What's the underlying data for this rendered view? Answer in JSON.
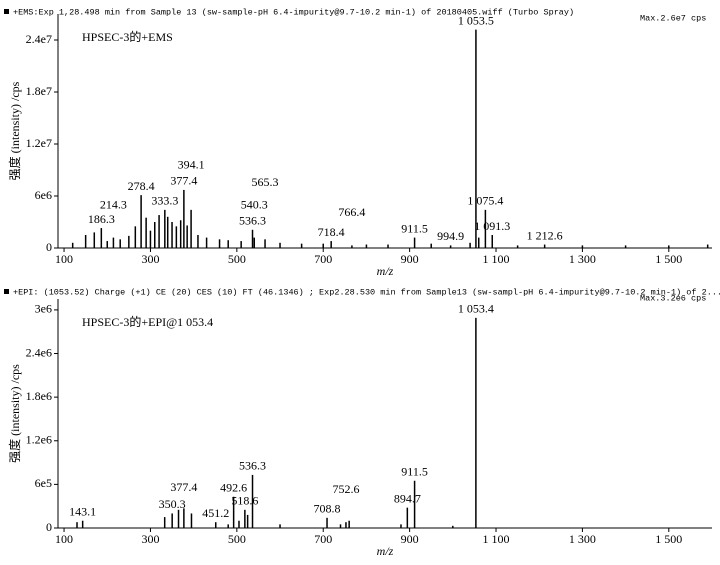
{
  "chart_data": [
    {
      "type": "bar",
      "header": "+EMS:Exp 1,28.498 min from Sample 13 (sw-sample-pH 6.4-impurity@9.7-10.2 min-1) of 20180405.wiff (Turbo Spray)",
      "max_label": "Max.2.6e7 cps",
      "inset_label": "HPSEC-3的+EMS",
      "ylabel": "强度 (intensity) /cps",
      "xlabel": "m/z",
      "color": "#000000",
      "xlim": [
        86,
        1600
      ],
      "ylim": [
        0,
        27000000
      ],
      "xticks": [
        100,
        300,
        500,
        700,
        900,
        {
          "value": 1100,
          "label": "1 100"
        },
        {
          "value": 1300,
          "label": "1 300"
        },
        {
          "value": 1500,
          "label": "1 500"
        }
      ],
      "yticks": [
        0,
        {
          "value": 6000000,
          "label": "6e6"
        },
        {
          "value": 12000000,
          "label": "1.2e7"
        },
        {
          "value": 18000000,
          "label": "1.8e7"
        },
        {
          "value": 24000000,
          "label": "2.4e7"
        }
      ],
      "x": [
        120,
        150,
        170,
        186.3,
        200,
        214.3,
        230,
        250,
        265,
        278.4,
        290,
        300,
        310,
        320,
        333.3,
        340,
        350,
        360,
        370,
        377.4,
        385,
        394.1,
        410,
        430,
        460,
        480,
        510,
        536.3,
        540.3,
        565.3,
        600,
        650,
        700,
        718.4,
        766.4,
        800,
        850,
        911.5,
        950,
        994.9,
        1040,
        1053.5,
        1060,
        1075.4,
        1091.3,
        1150,
        1212.6,
        1300,
        1400,
        1500,
        1590
      ],
      "values": [
        600000,
        1500000,
        1800000,
        2300000,
        800000,
        1200000,
        1000000,
        1400000,
        2500000,
        6100000,
        3500000,
        2000000,
        3000000,
        3800000,
        4400000,
        3600000,
        3000000,
        2500000,
        3200000,
        6700000,
        2600000,
        4400000,
        1500000,
        1200000,
        1000000,
        900000,
        800000,
        2100000,
        1200000,
        1000000,
        600000,
        500000,
        500000,
        800000,
        300000,
        400000,
        400000,
        1200000,
        500000,
        300000,
        600000,
        25200000,
        1200000,
        4400000,
        1500000,
        300000,
        400000,
        300000,
        300000,
        300000,
        400000
      ],
      "peak_labels": [
        null,
        null,
        null,
        "186.3",
        null,
        "214.3",
        null,
        null,
        null,
        "278.4",
        null,
        null,
        null,
        null,
        "333.3",
        null,
        null,
        null,
        null,
        "377.4",
        null,
        "394.1",
        null,
        null,
        null,
        null,
        null,
        "536.3",
        "540.3",
        "565.3",
        null,
        null,
        null,
        "718.4",
        "766.4",
        null,
        null,
        "911.5",
        null,
        "994.9",
        null,
        "1 053.5",
        null,
        "1 075.4",
        "1 091.3",
        null,
        "1 212.6",
        null,
        null,
        null,
        null
      ]
    },
    {
      "type": "bar",
      "header": "+EPI: (1053.52) Charge (+1) CE (20) CES (10) FT (46.1346) ; Exp2.28.530 min from Sample13 (sw-sampl-pH 6.4-impurity@9.7-10.2 min-1) of 2...",
      "max_label": "Max.3.2e6 cps",
      "inset_label": "HPSEC-3的+EPI@1 053.4",
      "ylabel": "强度 (intensity) /cps",
      "xlabel": "m/z",
      "color": "#000000",
      "xlim": [
        86,
        1600
      ],
      "ylim": [
        0,
        3150000
      ],
      "xticks": [
        100,
        300,
        500,
        700,
        900,
        {
          "value": 1100,
          "label": "1 100"
        },
        {
          "value": 1300,
          "label": "1 300"
        },
        {
          "value": 1500,
          "label": "1 500"
        }
      ],
      "yticks": [
        0,
        {
          "value": 600000,
          "label": "6e5"
        },
        {
          "value": 1200000,
          "label": "1.2e6"
        },
        {
          "value": 1800000,
          "label": "1.8e6"
        },
        {
          "value": 2400000,
          "label": "2.4e6"
        },
        {
          "value": 3000000,
          "label": "3e6"
        }
      ],
      "x": [
        130,
        143.1,
        333,
        350.3,
        365,
        377.4,
        395,
        451.2,
        480,
        492.6,
        505,
        518.6,
        525,
        536.3,
        600,
        708.8,
        740,
        752.6,
        760,
        880,
        894.7,
        911.5,
        1000,
        1053.4
      ],
      "values": [
        80000,
        100000,
        150000,
        200000,
        250000,
        270000,
        200000,
        80000,
        50000,
        430000,
        100000,
        250000,
        180000,
        730000,
        50000,
        140000,
        50000,
        80000,
        100000,
        50000,
        280000,
        650000,
        30000,
        2890000
      ],
      "peak_labels": [
        null,
        "143.1",
        null,
        "350.3",
        null,
        "377.4",
        null,
        "451.2",
        null,
        "492.6",
        null,
        "518.6",
        null,
        "536.3",
        null,
        "708.8",
        null,
        "752.6",
        null,
        null,
        "894.7",
        "911.5",
        null,
        "1 053.4"
      ]
    }
  ]
}
